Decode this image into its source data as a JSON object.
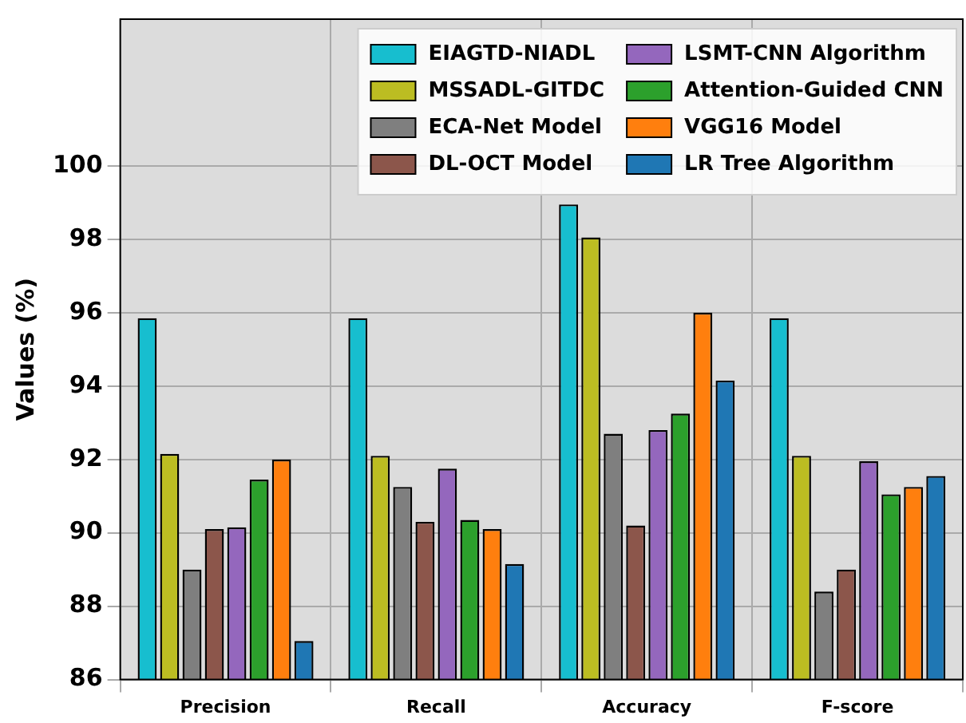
{
  "chart_data": {
    "type": "bar",
    "ylabel": "Values (%)",
    "categories": [
      "Precision",
      "Recall",
      "Accuracy",
      "F-score"
    ],
    "series": [
      {
        "name": "EIAGTD-NIADL",
        "color": "#17becf",
        "values": [
          95.85,
          95.85,
          98.95,
          95.85
        ]
      },
      {
        "name": "MSSADL-GITDC",
        "color": "#bcbd22",
        "values": [
          92.15,
          92.1,
          98.05,
          92.1
        ]
      },
      {
        "name": "ECA-Net Model",
        "color": "#7f7f7f",
        "values": [
          89.0,
          91.25,
          92.7,
          88.4
        ]
      },
      {
        "name": "DL-OCT Model",
        "color": "#8c564b",
        "values": [
          90.1,
          90.3,
          90.2,
          89.0
        ]
      },
      {
        "name": "LSMT-CNN Algorithm",
        "color": "#9467bd",
        "values": [
          90.15,
          91.75,
          92.8,
          91.95
        ]
      },
      {
        "name": "Attention-Guided CNN",
        "color": "#2ca02c",
        "values": [
          91.45,
          90.35,
          93.25,
          91.05
        ]
      },
      {
        "name": "VGG16 Model",
        "color": "#ff7f0e",
        "values": [
          92.0,
          90.1,
          96.0,
          91.25
        ]
      },
      {
        "name": "LR Tree Algorithm",
        "color": "#1f77b4",
        "values": [
          87.05,
          89.15,
          94.15,
          91.55
        ]
      }
    ],
    "ylim": [
      86,
      104
    ],
    "yticks": [
      86,
      88,
      90,
      92,
      94,
      96,
      98,
      100
    ],
    "grid": true,
    "legend": "top right"
  }
}
